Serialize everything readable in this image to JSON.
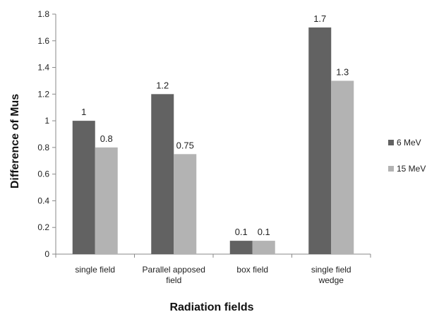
{
  "chart_data": {
    "type": "bar",
    "categories": [
      "single field",
      "Parallel apposed field",
      "box field",
      "single  field wedge"
    ],
    "category_lines": [
      [
        "single field"
      ],
      [
        "Parallel apposed",
        "field"
      ],
      [
        "box field"
      ],
      [
        "single  field",
        "wedge"
      ]
    ],
    "series": [
      {
        "name": "6 MeV",
        "values": [
          1,
          1.2,
          0.1,
          1.7
        ],
        "labels": [
          "1",
          "1.2",
          "0.1",
          "1.7"
        ],
        "color": "#626262"
      },
      {
        "name": "15 MeV",
        "values": [
          0.8,
          0.75,
          0.1,
          1.3
        ],
        "labels": [
          "0.8",
          "0.75",
          "0.1",
          "1.3"
        ],
        "color": "#b3b3b3"
      }
    ],
    "xlabel": "Radiation fields",
    "ylabel": "Difference of Mus",
    "ylim": [
      0,
      1.8
    ],
    "yticks": [
      "0",
      "0.2",
      "0.4",
      "0.6",
      "0.8",
      "1",
      "1.2",
      "1.4",
      "1.6",
      "1.8"
    ],
    "grid": false,
    "legend_position": "right"
  }
}
